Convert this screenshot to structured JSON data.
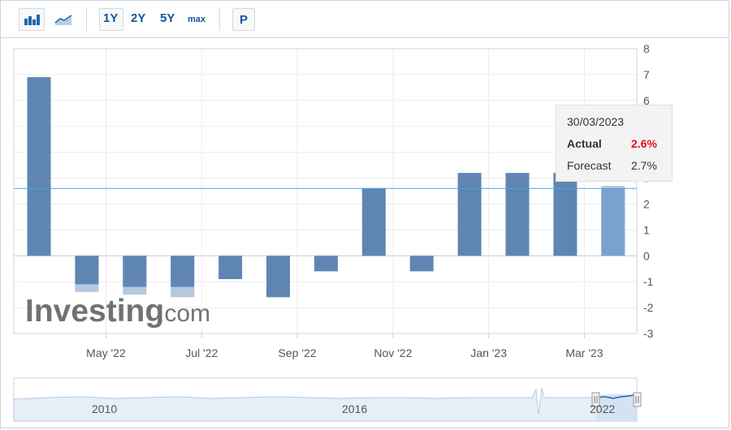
{
  "toolbar": {
    "periods": [
      "1Y",
      "2Y",
      "5Y",
      "max"
    ],
    "p_label": "P",
    "icons": [
      "bar-chart-icon",
      "line-chart-icon"
    ]
  },
  "tooltip": {
    "date": "30/03/2023",
    "actual_label": "Actual",
    "actual_value": "2.6%",
    "forecast_label": "Forecast",
    "forecast_value": "2.7%"
  },
  "watermark": {
    "brand": "Investing",
    "suffix": ".com"
  },
  "navigator": {
    "labels": [
      "2010",
      "2016",
      "2022"
    ]
  },
  "colors": {
    "bar": "#5f86b3",
    "bar_highlight": "#7ba2cf",
    "forecast_bar": "#b5c8e0",
    "reference_line": "#4ea1e6",
    "actual_value": "#e0101a",
    "period_text": "#1256a0"
  },
  "chart_data": {
    "type": "bar",
    "ylim": [
      -3,
      8
    ],
    "yticks": [
      -3,
      -2,
      -1,
      0,
      1,
      2,
      3,
      4,
      5,
      6,
      7,
      8
    ],
    "x_tick_labels": [
      "May '22",
      "Jul '22",
      "Sep '22",
      "Nov '22",
      "Jan '23",
      "Mar '23"
    ],
    "grid": true,
    "reference_line": 2.6,
    "series": [
      {
        "values": [
          6.9,
          -1.1,
          -1.2,
          -1.2,
          -0.9,
          -1.6,
          -0.6,
          2.6,
          -0.6,
          3.2,
          3.2,
          3.2,
          2.6
        ]
      },
      {
        "values": [
          null,
          -1.4,
          -1.5,
          -1.6,
          null,
          null,
          null,
          null,
          null,
          null,
          null,
          null,
          2.7
        ]
      }
    ],
    "highlight_index": 12
  }
}
